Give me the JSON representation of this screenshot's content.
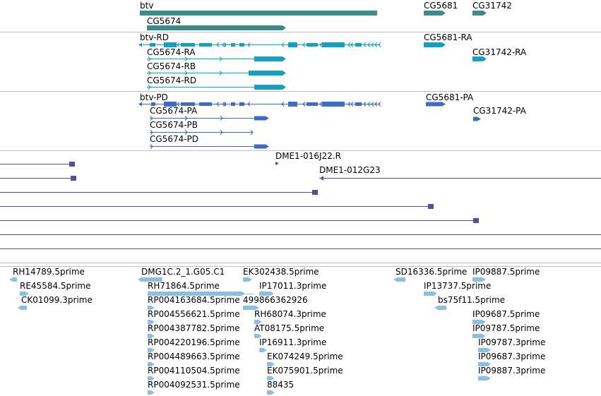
{
  "colors": {
    "gene": "#3a8c8c",
    "mrna": "#14a0bf",
    "cds": "#3d6cc6",
    "clone": "#5e4a9a",
    "est": "#8cbfdf",
    "divider": "#bfbfbf"
  },
  "tracks": {
    "gene": {
      "features": [
        {
          "label": "btv"
        },
        {
          "label": "CG5674"
        },
        {
          "label": "CG5681"
        },
        {
          "label": "CG31742"
        }
      ]
    },
    "mrna": {
      "features": [
        {
          "label": "btv-RD"
        },
        {
          "label": "CG5674-RA"
        },
        {
          "label": "CG5674-RB"
        },
        {
          "label": "CG5674-RD"
        },
        {
          "label": "CG5681-RA"
        },
        {
          "label": "CG31742-RA"
        }
      ]
    },
    "cds": {
      "features": [
        {
          "label": "btv-PD"
        },
        {
          "label": "CG5674-PA"
        },
        {
          "label": "CG5674-PB"
        },
        {
          "label": "CG5674-PD"
        },
        {
          "label": "CG5681-PA"
        },
        {
          "label": "CG31742-PA"
        }
      ]
    },
    "clones": {
      "features": [
        {
          "label": "DME1-016J22.R"
        },
        {
          "label": "DME1-012G23"
        }
      ]
    },
    "est": {
      "features": [
        {
          "label": "RH14789.5prime"
        },
        {
          "label": "RE45584.5prime"
        },
        {
          "label": "CK01099.3prime"
        },
        {
          "label": "DMG1C.2_1.G05.C1"
        },
        {
          "label": "RH71864.5prime"
        },
        {
          "label": "RP004163684.5prime"
        },
        {
          "label": "RP004556621.5prime"
        },
        {
          "label": "RP004387782.5prime"
        },
        {
          "label": "RP004220196.5prime"
        },
        {
          "label": "RP004489663.5prime"
        },
        {
          "label": "RP004110504.5prime"
        },
        {
          "label": "RP004092531.5prime"
        },
        {
          "label": "EK302438.5prime"
        },
        {
          "label": "IP17011.3prime"
        },
        {
          "label": "499866362926"
        },
        {
          "label": "RH68074.3prime"
        },
        {
          "label": "AT08175.5prime"
        },
        {
          "label": "IP16911.3prime"
        },
        {
          "label": "EK074249.5prime"
        },
        {
          "label": "EK075901.5prime"
        },
        {
          "label": "88435"
        },
        {
          "label": "SD16336.5prime"
        },
        {
          "label": "IP13737.5prime"
        },
        {
          "label": "bs75f11.5prime"
        },
        {
          "label": "IP09887.5prime"
        },
        {
          "label": "IP09687.5prime"
        },
        {
          "label": "IP09787.5prime"
        },
        {
          "label": "IP09787.3prime"
        },
        {
          "label": "IP09687.3prime"
        },
        {
          "label": "IP09887.3prime"
        }
      ]
    }
  }
}
